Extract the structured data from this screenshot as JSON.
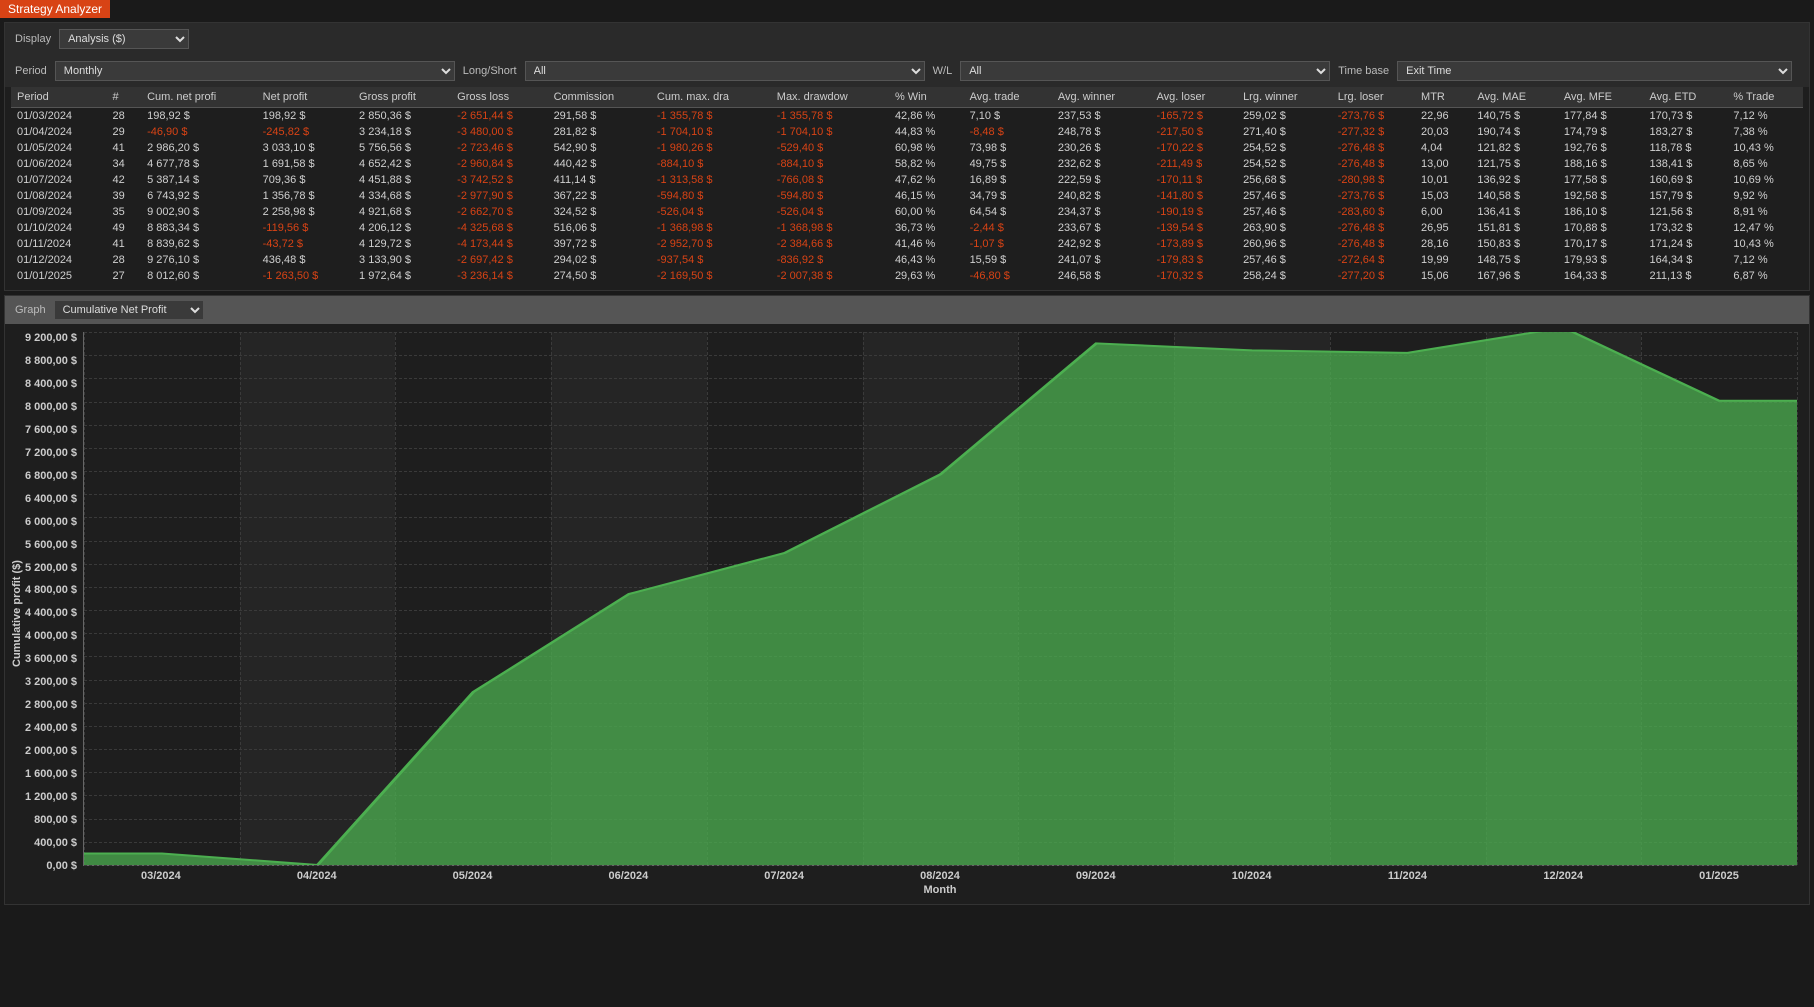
{
  "header": {
    "title": "Strategy Analyzer"
  },
  "controls": {
    "display_label": "Display",
    "display_value": "Analysis ($)",
    "period_label": "Period",
    "period_value": "Monthly",
    "longshort_label": "Long/Short",
    "longshort_value": "All",
    "wl_label": "W/L",
    "wl_value": "All",
    "timebase_label": "Time base",
    "timebase_value": "Exit Time"
  },
  "table": {
    "columns": [
      "Period",
      "#",
      "Cum. net profi",
      "Net profit",
      "Gross profit",
      "Gross loss",
      "Commission",
      "Cum. max. dra",
      "Max. drawdow",
      "% Win",
      "Avg. trade",
      "Avg. winner",
      "Avg. loser",
      "Lrg. winner",
      "Lrg. loser",
      "MTR",
      "Avg. MAE",
      "Avg. MFE",
      "Avg. ETD",
      "% Trade"
    ],
    "neg_cols": [
      5,
      7,
      8,
      12,
      14
    ],
    "cond_neg_cols": [
      2,
      3,
      10
    ],
    "rows": [
      [
        "01/03/2024",
        "28",
        "198,92 $",
        "198,92 $",
        "2 850,36 $",
        "-2 651,44 $",
        "291,58 $",
        "-1 355,78 $",
        "-1 355,78 $",
        "42,86 %",
        "7,10 $",
        "237,53 $",
        "-165,72 $",
        "259,02 $",
        "-273,76 $",
        "22,96",
        "140,75 $",
        "177,84 $",
        "170,73 $",
        "7,12 %"
      ],
      [
        "01/04/2024",
        "29",
        "-46,90 $",
        "-245,82 $",
        "3 234,18 $",
        "-3 480,00 $",
        "281,82 $",
        "-1 704,10 $",
        "-1 704,10 $",
        "44,83 %",
        "-8,48 $",
        "248,78 $",
        "-217,50 $",
        "271,40 $",
        "-277,32 $",
        "20,03",
        "190,74 $",
        "174,79 $",
        "183,27 $",
        "7,38 %"
      ],
      [
        "01/05/2024",
        "41",
        "2 986,20 $",
        "3 033,10 $",
        "5 756,56 $",
        "-2 723,46 $",
        "542,90 $",
        "-1 980,26 $",
        "-529,40 $",
        "60,98 %",
        "73,98 $",
        "230,26 $",
        "-170,22 $",
        "254,52 $",
        "-276,48 $",
        "4,04",
        "121,82 $",
        "192,76 $",
        "118,78 $",
        "10,43 %"
      ],
      [
        "01/06/2024",
        "34",
        "4 677,78 $",
        "1 691,58 $",
        "4 652,42 $",
        "-2 960,84 $",
        "440,42 $",
        "-884,10 $",
        "-884,10 $",
        "58,82 %",
        "49,75 $",
        "232,62 $",
        "-211,49 $",
        "254,52 $",
        "-276,48 $",
        "13,00",
        "121,75 $",
        "188,16 $",
        "138,41 $",
        "8,65 %"
      ],
      [
        "01/07/2024",
        "42",
        "5 387,14 $",
        "709,36 $",
        "4 451,88 $",
        "-3 742,52 $",
        "411,14 $",
        "-1 313,58 $",
        "-766,08 $",
        "47,62 %",
        "16,89 $",
        "222,59 $",
        "-170,11 $",
        "256,68 $",
        "-280,98 $",
        "10,01",
        "136,92 $",
        "177,58 $",
        "160,69 $",
        "10,69 %"
      ],
      [
        "01/08/2024",
        "39",
        "6 743,92 $",
        "1 356,78 $",
        "4 334,68 $",
        "-2 977,90 $",
        "367,22 $",
        "-594,80 $",
        "-594,80 $",
        "46,15 %",
        "34,79 $",
        "240,82 $",
        "-141,80 $",
        "257,46 $",
        "-273,76 $",
        "15,03",
        "140,58 $",
        "192,58 $",
        "157,79 $",
        "9,92 %"
      ],
      [
        "01/09/2024",
        "35",
        "9 002,90 $",
        "2 258,98 $",
        "4 921,68 $",
        "-2 662,70 $",
        "324,52 $",
        "-526,04 $",
        "-526,04 $",
        "60,00 %",
        "64,54 $",
        "234,37 $",
        "-190,19 $",
        "257,46 $",
        "-283,60 $",
        "6,00",
        "136,41 $",
        "186,10 $",
        "121,56 $",
        "8,91 %"
      ],
      [
        "01/10/2024",
        "49",
        "8 883,34 $",
        "-119,56 $",
        "4 206,12 $",
        "-4 325,68 $",
        "516,06 $",
        "-1 368,98 $",
        "-1 368,98 $",
        "36,73 %",
        "-2,44 $",
        "233,67 $",
        "-139,54 $",
        "263,90 $",
        "-276,48 $",
        "26,95",
        "151,81 $",
        "170,88 $",
        "173,32 $",
        "12,47 %"
      ],
      [
        "01/11/2024",
        "41",
        "8 839,62 $",
        "-43,72 $",
        "4 129,72 $",
        "-4 173,44 $",
        "397,72 $",
        "-2 952,70 $",
        "-2 384,66 $",
        "41,46 %",
        "-1,07 $",
        "242,92 $",
        "-173,89 $",
        "260,96 $",
        "-276,48 $",
        "28,16",
        "150,83 $",
        "170,17 $",
        "171,24 $",
        "10,43 %"
      ],
      [
        "01/12/2024",
        "28",
        "9 276,10 $",
        "436,48 $",
        "3 133,90 $",
        "-2 697,42 $",
        "294,02 $",
        "-937,54 $",
        "-836,92 $",
        "46,43 %",
        "15,59 $",
        "241,07 $",
        "-179,83 $",
        "257,46 $",
        "-272,64 $",
        "19,99",
        "148,75 $",
        "179,93 $",
        "164,34 $",
        "7,12 %"
      ],
      [
        "01/01/2025",
        "27",
        "8 012,60 $",
        "-1 263,50 $",
        "1 972,64 $",
        "-3 236,14 $",
        "274,50 $",
        "-2 169,50 $",
        "-2 007,38 $",
        "29,63 %",
        "-46,80 $",
        "246,58 $",
        "-170,32 $",
        "258,24 $",
        "-277,20 $",
        "15,06",
        "167,96 $",
        "164,33 $",
        "211,13 $",
        "6,87 %"
      ]
    ]
  },
  "graph": {
    "label": "Graph",
    "select_value": "Cumulative Net Profit",
    "ylabel": "Cumulative profit ($)",
    "xlabel": "Month",
    "ymax": 9200,
    "ymin": 0,
    "ystep": 400,
    "yticks": [
      "9 200,00 $",
      "8 800,00 $",
      "8 400,00 $",
      "8 000,00 $",
      "7 600,00 $",
      "7 200,00 $",
      "6 800,00 $",
      "6 400,00 $",
      "6 000,00 $",
      "5 600,00 $",
      "5 200,00 $",
      "4 800,00 $",
      "4 400,00 $",
      "4 000,00 $",
      "3 600,00 $",
      "3 200,00 $",
      "2 800,00 $",
      "2 400,00 $",
      "2 000,00 $",
      "1 600,00 $",
      "1 200,00 $",
      "800,00 $",
      "400,00 $",
      "0,00 $"
    ],
    "xticks": [
      "03/2024",
      "04/2024",
      "05/2024",
      "06/2024",
      "07/2024",
      "08/2024",
      "09/2024",
      "10/2024",
      "11/2024",
      "12/2024",
      "01/2025"
    ],
    "values": [
      198.92,
      -46.9,
      2986.2,
      4677.78,
      5387.14,
      6743.92,
      9002.9,
      8883.34,
      8839.62,
      9276.1,
      8012.6
    ],
    "line_color": "#4caf50",
    "fill_color": "#4caf50",
    "fill_opacity": 0.75,
    "background": "#1e1e1e"
  }
}
